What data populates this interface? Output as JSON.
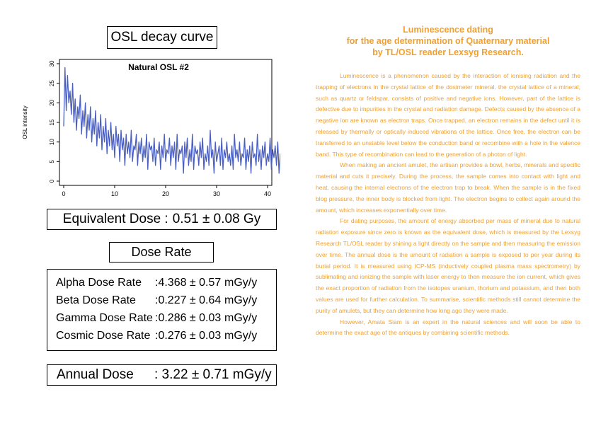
{
  "left_panel": {
    "osl_title": "OSL decay curve",
    "equivalent_dose": {
      "label": "Equivalent Dose :",
      "value": "0.51 ± 0.08 Gy"
    },
    "dose_rate_title": "Dose Rate",
    "dose_rates": [
      {
        "name": "Alpha Dose Rate",
        "value": ":4.368 ± 0.57",
        "unit": "mGy/y"
      },
      {
        "name": "Beta Dose Rate",
        "value": ":0.227 ± 0.64",
        "unit": "mGy/y"
      },
      {
        "name": "Gamma Dose Rate",
        "value": ":0.286 ± 0.03",
        "unit": "mGy/y"
      },
      {
        "name": "Cosmic Dose Rate",
        "value": ":0.276 ± 0.03",
        "unit": "mGy/y"
      }
    ],
    "annual_dose": {
      "label": "Annual Dose",
      "value": ": 3.22 ± 0.71 mGy/y"
    }
  },
  "chart_data": {
    "type": "line",
    "title": "Natural OSL #2",
    "xlabel": "",
    "ylabel": "OSL intensity",
    "xlim": [
      0,
      40
    ],
    "ylim": [
      0,
      30
    ],
    "x_ticks": [
      0,
      10,
      20,
      30,
      40
    ],
    "y_ticks": [
      0,
      5,
      10,
      15,
      20,
      25,
      30
    ],
    "line_color": "#4A5FC1",
    "series": [
      {
        "x_start": 0,
        "x_step": 0.25,
        "values": [
          14,
          29,
          18,
          27,
          20,
          23,
          17,
          25,
          15,
          21,
          13,
          19,
          16,
          22,
          12,
          18,
          14,
          20,
          11,
          17,
          13,
          19,
          10,
          16,
          12,
          18,
          9,
          15,
          11,
          17,
          8,
          14,
          10,
          16,
          7,
          13,
          9,
          15,
          8,
          12,
          6,
          14,
          9,
          12,
          5,
          13,
          8,
          11,
          4,
          12,
          7,
          10,
          6,
          13,
          5,
          9,
          8,
          12,
          4,
          10,
          7,
          11,
          5,
          9,
          6,
          12,
          3,
          10,
          8,
          9,
          5,
          11,
          4,
          8,
          7,
          10,
          3,
          9,
          6,
          12,
          5,
          8,
          7,
          11,
          4,
          9,
          6,
          10,
          3,
          12,
          5,
          8,
          7,
          9,
          2,
          10,
          6,
          11,
          4,
          8,
          5,
          12,
          3,
          9,
          7,
          8,
          4,
          10,
          6,
          11,
          3,
          7,
          5,
          9,
          4,
          13,
          6,
          8,
          2,
          10,
          5,
          7,
          9,
          4,
          11,
          3,
          8,
          6,
          10,
          5,
          7,
          4,
          9,
          3,
          12,
          6,
          8,
          5,
          10,
          4,
          7,
          6,
          11,
          3,
          8,
          5,
          9,
          2,
          10,
          6,
          7,
          4,
          12,
          5,
          8,
          3,
          9,
          6,
          10,
          4,
          7,
          5,
          11,
          3,
          8,
          6,
          9,
          4,
          10,
          2,
          7,
          5,
          12,
          4,
          8,
          6,
          9,
          3,
          15,
          5,
          7,
          4,
          10,
          6,
          8,
          3,
          9,
          5,
          11,
          4,
          7,
          2,
          12,
          6,
          5,
          9,
          3,
          8,
          4,
          4
        ]
      }
    ]
  },
  "article": {
    "title_lines": [
      "Luminescence dating",
      "for the age determination of Quaternary material",
      "by TL/OSL reader Lexsyg Research."
    ],
    "paragraphs": [
      "Luminescence is a phenomenon caused by the interaction of ionising radiation and the trapping of electrons in the crystal lattice of the dosimeter mineral. the crystal lattice of a mineral, such as quartz or feldspar, consists of positive and negative ions. However, part of the lattice is defective due to impurities in the crystal and radiation damage. Defects caused by the absence of a negative ion are known as electron traps. Once trapped, an electron remains in the defect until it is released by thermally or optically induced vibrations of the lattice. Once free, the electron can be transferred to an unstable level below the conduction band or recombine with a hole in the valence band. This type of recombination can lead to the generation of a photon of light.",
      "When making an ancient amulet, the artisan provides a bowl, herbs, minerals and specific material and cuts it precisely. During the process, the sample comes into contact with light and heat, causing the internal electrons of the electron trap to break. When the sample is in the fixed blog pressure, the inner body is blocked from light. The electron begins to collect again around the amount, which increases exponentially over time.",
      "For dating purposes, the amount of energy absorbed per mass of mineral due to natural radiation exposure since zero is known as the equivalent dose, which is measured by the Lexsyg Research TL/OSL reader by shining a light directly on the sample and then measuring the emission over time. The annual dose is the amount of radiation a sample is exposed to per year during its burial period. It is measured using ICP-MS (inductively coupled plasma mass spectrometry) by sublimating and ionizing the sample with laser energy to then measure the ion current, which gives the exact proportion of radiation from the isotopes uranium, thorium and potassium, and then both values are used for further calculation. To summarise, scientific methods still cannot determine the purity of amulets, but they can determine how long ago they were made.",
      "However, Amata Siam is an expert in the natural sciences and will soon be able to determine the exact age of the antiques by combining scientific methods."
    ]
  }
}
